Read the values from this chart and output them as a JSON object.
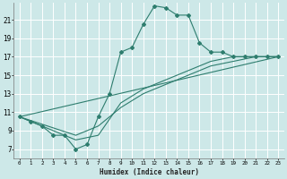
{
  "title": "",
  "xlabel": "Humidex (Indice chaleur)",
  "bg_color": "#cde8e8",
  "grid_color": "#b0d8d8",
  "line_color": "#2e7d6e",
  "xlim": [
    -0.5,
    23.5
  ],
  "ylim": [
    6.0,
    22.8
  ],
  "xticks": [
    0,
    1,
    2,
    3,
    4,
    5,
    6,
    7,
    8,
    9,
    10,
    11,
    12,
    13,
    14,
    15,
    16,
    17,
    18,
    19,
    20,
    21,
    22,
    23
  ],
  "yticks": [
    7,
    9,
    11,
    13,
    15,
    17,
    19,
    21
  ],
  "line1_x": [
    0,
    1,
    2,
    3,
    4,
    5,
    6,
    7,
    8,
    9,
    10,
    11,
    12,
    13,
    14,
    15,
    16,
    17,
    18,
    19,
    20,
    21,
    22,
    23
  ],
  "line1_y": [
    10.5,
    10.0,
    9.5,
    8.5,
    8.5,
    7.0,
    7.5,
    10.5,
    13.0,
    17.5,
    18.0,
    20.5,
    22.5,
    22.3,
    21.5,
    21.5,
    18.5,
    17.5,
    17.5,
    17.0,
    17.0,
    17.0,
    17.0,
    17.0
  ],
  "line2_x": [
    0,
    5,
    7,
    9,
    11,
    13,
    15,
    17,
    19,
    21,
    23
  ],
  "line2_y": [
    10.5,
    8.5,
    9.5,
    11.5,
    13.0,
    14.0,
    15.0,
    16.0,
    16.5,
    17.0,
    17.0
  ],
  "line3_x": [
    0,
    5,
    7,
    9,
    11,
    13,
    15,
    17,
    19,
    21,
    23
  ],
  "line3_y": [
    10.5,
    8.0,
    8.5,
    12.0,
    13.5,
    14.5,
    15.5,
    16.5,
    17.0,
    17.0,
    17.0
  ],
  "line4_x": [
    0,
    23
  ],
  "line4_y": [
    10.5,
    17.0
  ]
}
